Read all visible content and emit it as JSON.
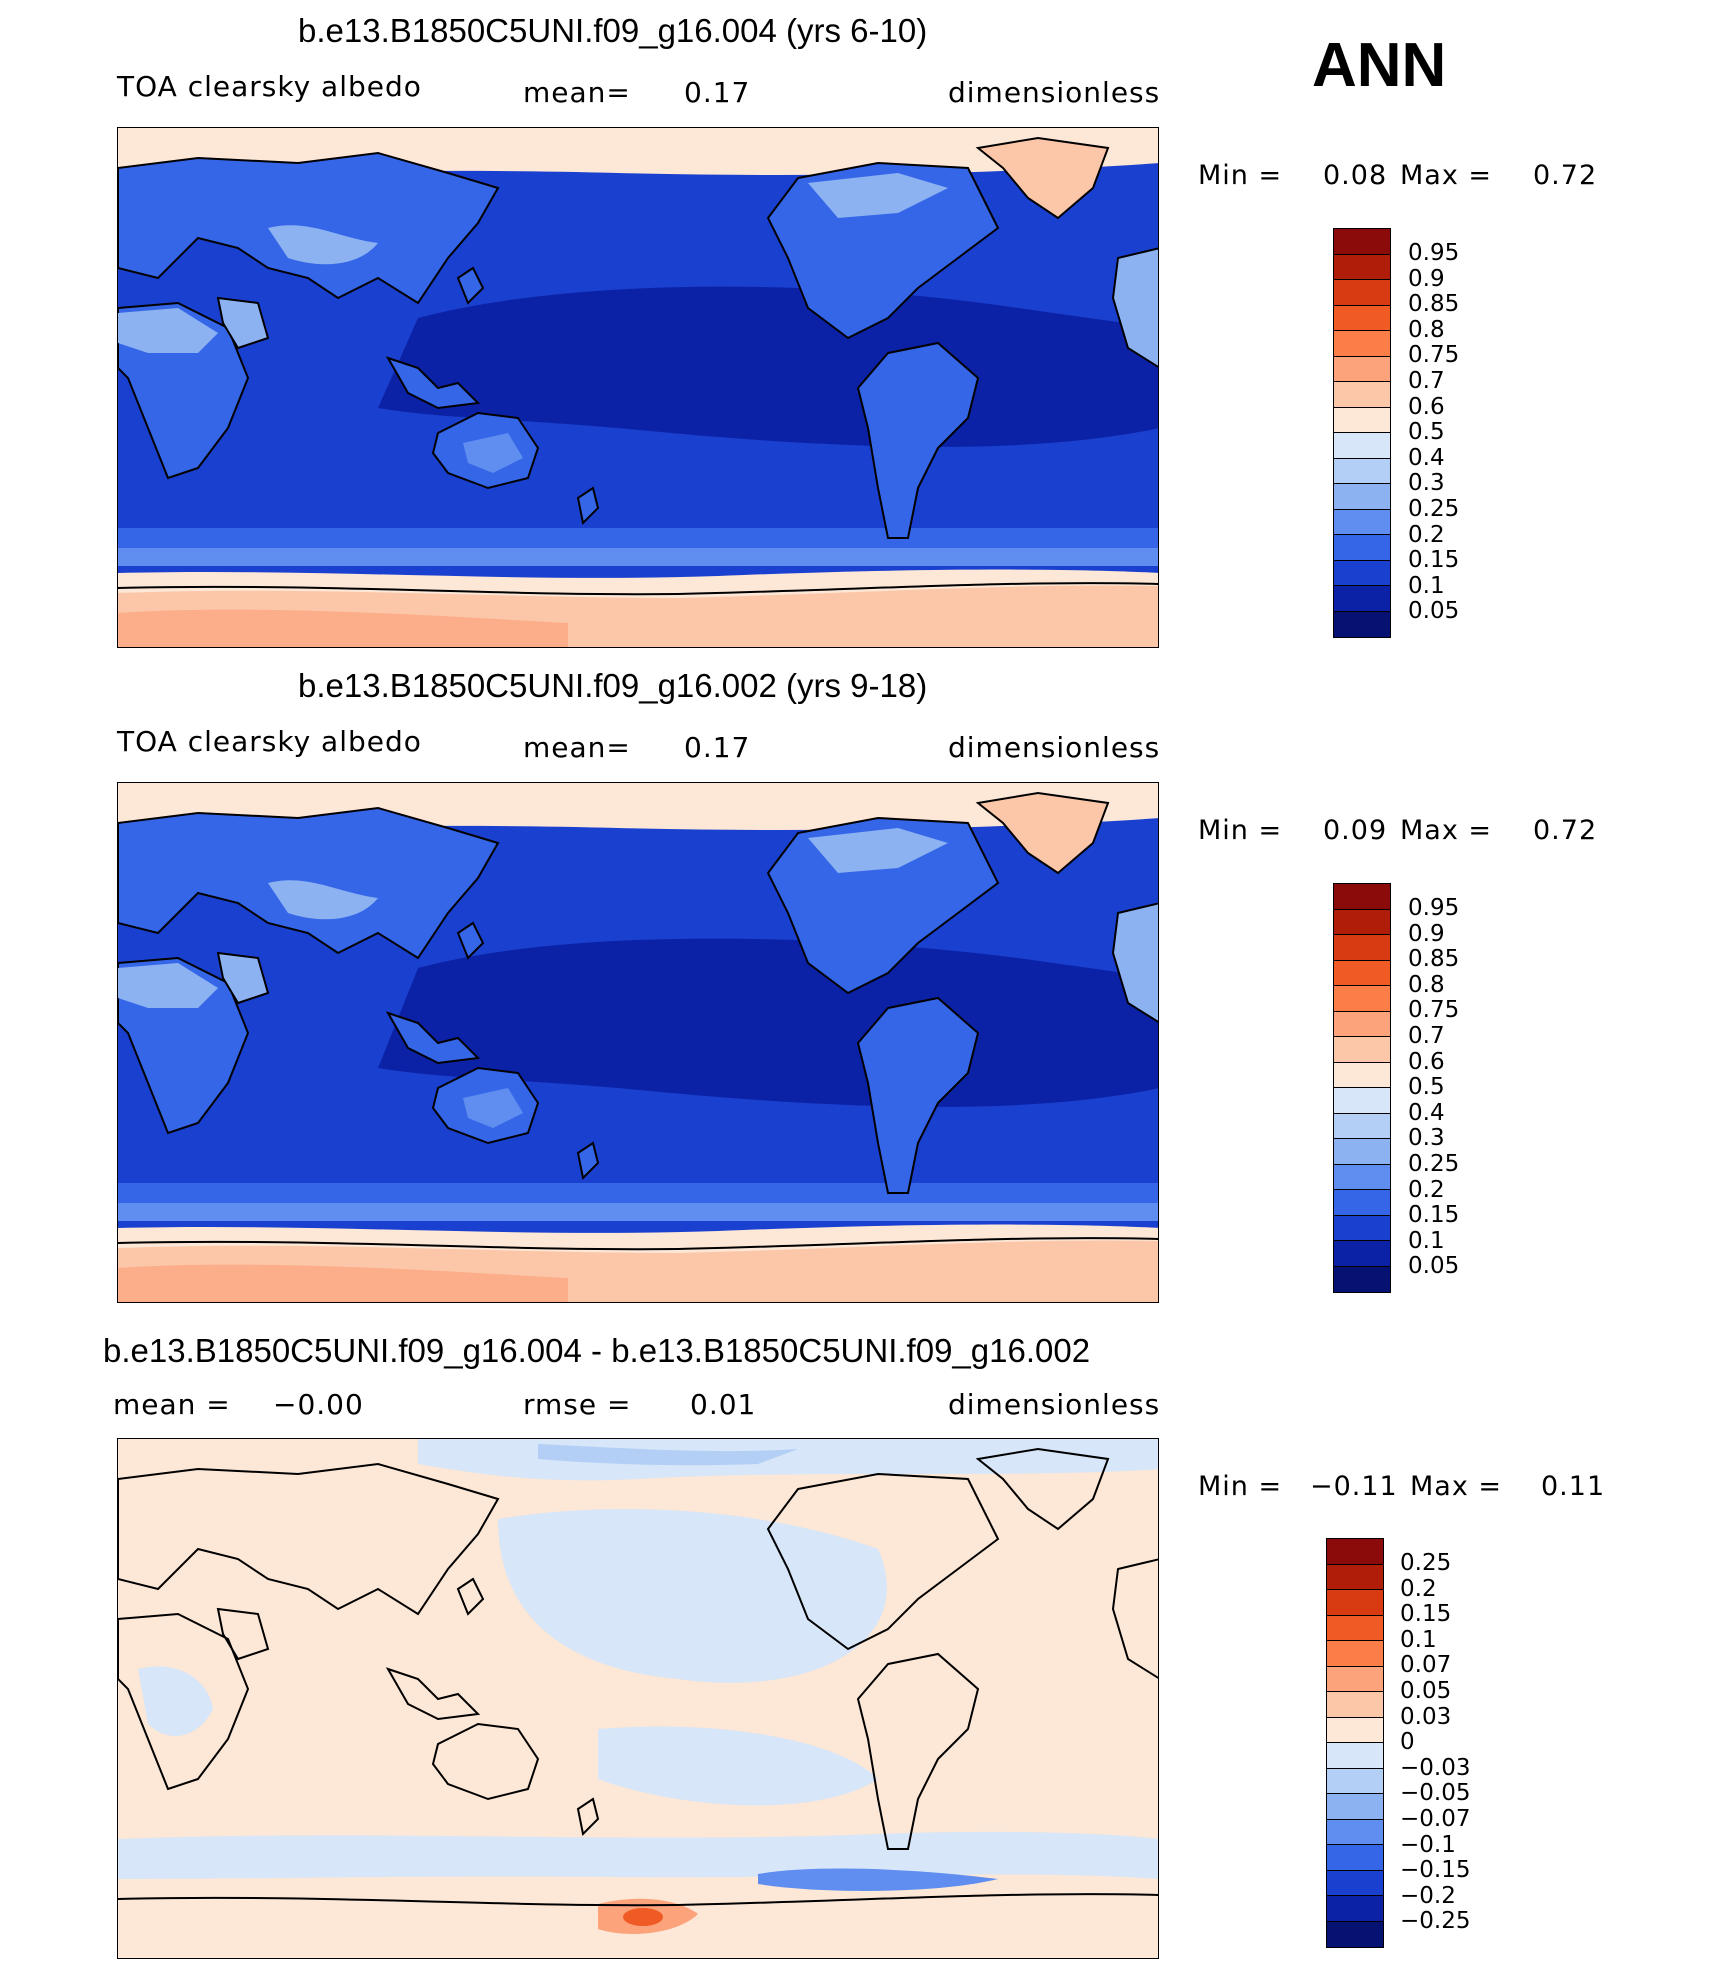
{
  "season": "ANN",
  "panels": [
    {
      "title": "b.e13.B1850C5UNI.f09_g16.004 (yrs 6-10)",
      "left_label": "TOA clearsky albedo",
      "stat1_label": "mean=",
      "stat1_value": "0.17",
      "stat2_label": "",
      "stat2_value": "",
      "units": "dimensionless",
      "min_label": "Min =",
      "min_value": "0.08",
      "max_label": "Max =",
      "max_value": "0.72",
      "colorbar_labels": [
        "0.95",
        "0.9",
        "0.85",
        "0.8",
        "0.75",
        "0.7",
        "0.6",
        "0.5",
        "0.4",
        "0.3",
        "0.25",
        "0.2",
        "0.15",
        "0.1",
        "0.05"
      ]
    },
    {
      "title": "b.e13.B1850C5UNI.f09_g16.002 (yrs 9-18)",
      "left_label": "TOA clearsky albedo",
      "stat1_label": "mean=",
      "stat1_value": "0.17",
      "stat2_label": "",
      "stat2_value": "",
      "units": "dimensionless",
      "min_label": "Min =",
      "min_value": "0.09",
      "max_label": "Max =",
      "max_value": "0.72",
      "colorbar_labels": [
        "0.95",
        "0.9",
        "0.85",
        "0.8",
        "0.75",
        "0.7",
        "0.6",
        "0.5",
        "0.4",
        "0.3",
        "0.25",
        "0.2",
        "0.15",
        "0.1",
        "0.05"
      ]
    },
    {
      "title": "b.e13.B1850C5UNI.f09_g16.004 - b.e13.B1850C5UNI.f09_g16.002",
      "left_label": "mean =",
      "stat1_label": "",
      "stat1_value": "−0.00",
      "stat2_label": "rmse =",
      "stat2_value": "0.01",
      "units": "dimensionless",
      "min_label": "Min =",
      "min_value": "−0.11",
      "max_label": "Max =",
      "max_value": "0.11",
      "colorbar_labels": [
        "0.25",
        "0.2",
        "0.15",
        "0.1",
        "0.07",
        "0.05",
        "0.03",
        "0",
        "−0.03",
        "−0.05",
        "−0.07",
        "−0.1",
        "−0.15",
        "−0.2",
        "−0.25"
      ]
    }
  ],
  "colors": {
    "abs_scale": [
      "#8b0a0a",
      "#b01e0a",
      "#d83a12",
      "#f05a24",
      "#fb7e48",
      "#fca37c",
      "#fcc7a9",
      "#fde7d6",
      "#d7e6f8",
      "#b3cff5",
      "#8cb2f2",
      "#5f8ef0",
      "#3566e8",
      "#1a40d0",
      "#0c22a6",
      "#061272"
    ],
    "diff_scale": [
      "#8b0a0a",
      "#b01e0a",
      "#d83a12",
      "#f05a24",
      "#fb7e48",
      "#fca37c",
      "#fcc7a9",
      "#fde7d6",
      "#d7e6f8",
      "#b3cff5",
      "#8cb2f2",
      "#5f8ef0",
      "#3566e8",
      "#1a40d0",
      "#0c22a6",
      "#061272"
    ],
    "coastline": "#000000"
  }
}
